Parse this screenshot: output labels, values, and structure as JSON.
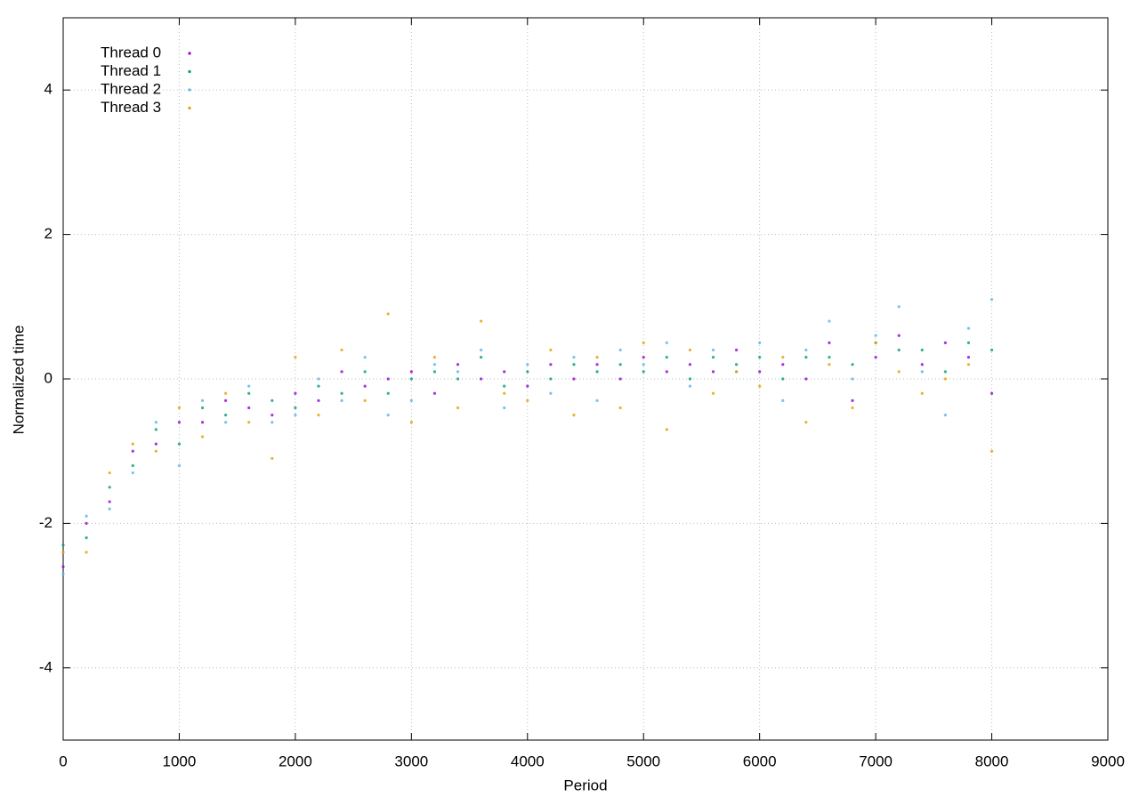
{
  "chart_data": {
    "type": "scatter",
    "x_label": "Period",
    "y_label": "Normalized time",
    "xlim": [
      0,
      9000
    ],
    "xticks": [
      0,
      1000,
      2000,
      3000,
      4000,
      5000,
      6000,
      7000,
      8000,
      9000
    ],
    "ylim": [
      -5,
      5
    ],
    "yticks": [
      -4,
      -2,
      0,
      2,
      4
    ],
    "grid": true,
    "legend": "top-left",
    "x": [
      0,
      200,
      400,
      600,
      800,
      1000,
      1200,
      1400,
      1600,
      1800,
      2000,
      2200,
      2400,
      2600,
      2800,
      3000,
      3200,
      3400,
      3600,
      3800,
      4000,
      4200,
      4400,
      4600,
      4800,
      5000,
      5200,
      5400,
      5600,
      5800,
      6000,
      6200,
      6400,
      6600,
      6800,
      7000,
      7200,
      7400,
      7600,
      7800,
      8000
    ],
    "series": [
      {
        "name": "Thread 0",
        "color": "#9400d3",
        "values": [
          -2.6,
          -2.0,
          -1.7,
          -1.0,
          -0.9,
          -0.6,
          -0.6,
          -0.3,
          -0.4,
          -0.5,
          -0.2,
          -0.3,
          0.1,
          -0.1,
          0.0,
          0.1,
          -0.2,
          0.2,
          0.0,
          0.1,
          -0.1,
          0.2,
          0.0,
          0.2,
          0.0,
          0.3,
          0.1,
          0.2,
          0.1,
          0.4,
          0.1,
          0.2,
          0.0,
          0.5,
          -0.3,
          0.3,
          0.6,
          0.2,
          0.5,
          0.3,
          -0.2
        ]
      },
      {
        "name": "Thread 1",
        "color": "#009e73",
        "values": [
          -2.3,
          -2.2,
          -1.5,
          -1.2,
          -0.7,
          -0.9,
          -0.4,
          -0.5,
          -0.2,
          -0.3,
          -0.4,
          -0.1,
          -0.2,
          0.1,
          -0.2,
          0.0,
          0.1,
          0.0,
          0.3,
          -0.1,
          0.1,
          0.0,
          0.2,
          0.1,
          0.2,
          0.1,
          0.3,
          0.0,
          0.3,
          0.2,
          0.3,
          0.0,
          0.3,
          0.3,
          0.2,
          0.5,
          0.4,
          0.4,
          0.1,
          0.5,
          0.4
        ]
      },
      {
        "name": "Thread 2",
        "color": "#56b4e9",
        "values": [
          -2.7,
          -1.9,
          -1.8,
          -1.3,
          -0.6,
          -1.2,
          -0.3,
          -0.6,
          -0.1,
          -0.6,
          -0.5,
          0.0,
          -0.3,
          0.3,
          -0.5,
          -0.3,
          0.2,
          0.1,
          0.4,
          -0.4,
          0.2,
          -0.2,
          0.3,
          -0.3,
          0.4,
          0.2,
          0.5,
          -0.1,
          0.4,
          0.1,
          0.5,
          -0.3,
          0.4,
          0.8,
          0.0,
          0.6,
          1.0,
          0.1,
          -0.5,
          0.7,
          1.1
        ]
      },
      {
        "name": "Thread 3",
        "color": "#e69f00",
        "values": [
          -2.4,
          -2.4,
          -1.3,
          -0.9,
          -1.0,
          -0.4,
          -0.8,
          -0.2,
          -0.6,
          -1.1,
          0.3,
          -0.5,
          0.4,
          -0.3,
          0.9,
          -0.6,
          0.3,
          -0.4,
          0.8,
          -0.2,
          -0.3,
          0.4,
          -0.5,
          0.3,
          -0.4,
          0.5,
          -0.7,
          0.4,
          -0.2,
          0.1,
          -0.1,
          0.3,
          -0.6,
          0.2,
          -0.4,
          0.5,
          0.1,
          -0.2,
          0.0,
          0.2,
          -1.0
        ]
      }
    ]
  }
}
